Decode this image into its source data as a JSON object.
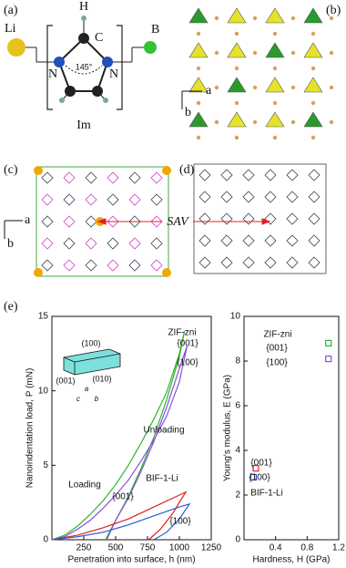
{
  "panels": {
    "a": {
      "label": "(a)",
      "li": "Li",
      "h": "H",
      "c": "C",
      "b": "B",
      "n1": "N",
      "n2": "N",
      "angle": "145°",
      "im": "Im"
    },
    "b": {
      "label": "(b)",
      "axis_a": "a",
      "axis_b": "b"
    },
    "c": {
      "label": "(c)",
      "axis_a": "a",
      "axis_b": "b"
    },
    "d": {
      "label": "(d)"
    },
    "sav": "SAV",
    "e": {
      "label": "(e)"
    }
  },
  "chart_data": [
    {
      "type": "line",
      "xlabel": "Penetration into surface, h (nm)",
      "ylabel": "Nanoindentation load, P (mN)",
      "xlim": [
        0,
        1250
      ],
      "xticks": [
        250,
        500,
        750,
        1000,
        1250
      ],
      "ylim": [
        0,
        15
      ],
      "yticks": [
        0,
        5,
        10,
        15
      ],
      "series": [
        {
          "color": "#2bb52b",
          "x": [
            0,
            100,
            200,
            300,
            400,
            500,
            600,
            700,
            800,
            900,
            1000,
            1040,
            1000,
            900,
            800,
            700,
            600,
            500,
            420
          ],
          "values": [
            0,
            0.3,
            0.9,
            1.7,
            2.6,
            3.7,
            5,
            6.5,
            8.1,
            9.9,
            12.5,
            14,
            12.3,
            9.4,
            6.9,
            4.8,
            2.9,
            1.3,
            0
          ]
        },
        {
          "color": "#8a4fd8",
          "x": [
            0,
            100,
            200,
            300,
            400,
            500,
            600,
            700,
            800,
            900,
            1000,
            1060,
            1020,
            900,
            800,
            700,
            600,
            500,
            430
          ],
          "values": [
            0,
            0.2,
            0.7,
            1.3,
            2.1,
            3,
            4,
            5.3,
            6.7,
            8.3,
            10.6,
            13,
            12,
            8.9,
            6.6,
            4.6,
            2.8,
            1.3,
            0
          ]
        },
        {
          "color": "#e02020",
          "x": [
            0,
            200,
            400,
            600,
            800,
            1000,
            1050,
            950,
            850,
            760
          ],
          "values": [
            0,
            0.3,
            0.8,
            1.4,
            2.2,
            3,
            3.2,
            1.8,
            0.7,
            0
          ]
        },
        {
          "color": "#2a5bd8",
          "x": [
            0,
            200,
            400,
            600,
            800,
            1000,
            1080,
            1000,
            900,
            800
          ],
          "values": [
            0,
            0.2,
            0.5,
            1,
            1.6,
            2.2,
            2.4,
            1.4,
            0.5,
            0
          ]
        }
      ],
      "annotations": [
        "ZIF-zni",
        "{001}",
        "{100}",
        "Unloading",
        "Loading",
        "BIF-1-Li",
        "{001}",
        "{100}"
      ],
      "inset": [
        "(100)",
        "(001)",
        "(010)",
        "a",
        "c",
        "b"
      ]
    },
    {
      "type": "scatter",
      "xlabel": "Hardness, H (GPa)",
      "ylabel": "Young's modulus, E (GPa)",
      "xlim": [
        0,
        1.2
      ],
      "xticks": [
        0.4,
        0.8,
        1.2
      ],
      "ylim": [
        0,
        10
      ],
      "yticks": [
        0,
        2,
        4,
        6,
        8,
        10
      ],
      "series": [
        {
          "color": "#2bb52b",
          "x": [
            1.07
          ],
          "values": [
            8.8
          ]
        },
        {
          "color": "#8a4fd8",
          "x": [
            1.07
          ],
          "values": [
            8.1
          ]
        },
        {
          "color": "#e02020",
          "x": [
            0.15
          ],
          "values": [
            3.2
          ]
        },
        {
          "color": "#2a5bd8",
          "x": [
            0.12
          ],
          "values": [
            2.8
          ]
        }
      ],
      "annotations": [
        "ZIF-zni",
        "{001}",
        "{100}",
        "{001}",
        "{100}",
        "BIF-1-Li"
      ]
    }
  ]
}
